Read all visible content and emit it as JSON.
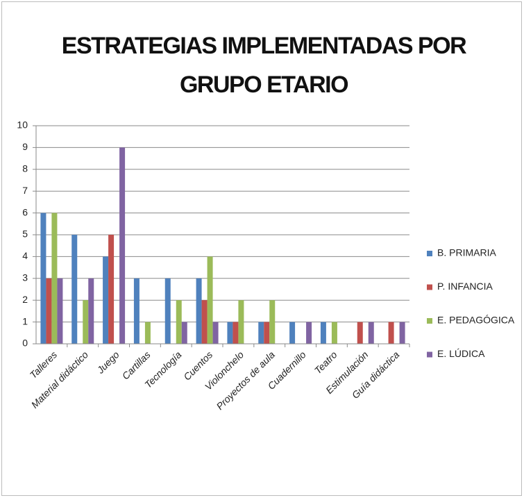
{
  "chart_data": {
    "type": "bar",
    "title": "ESTRATEGIAS IMPLEMENTADAS POR GRUPO ETARIO",
    "categories": [
      "Talleres",
      "Material didáctico",
      "Juego",
      "Cartillas",
      "Tecnología",
      "Cuentos",
      "Violonchelo",
      "Proyectos de aula",
      "Cuadernillo",
      "Teatro",
      "Estimulación",
      "Guía didáctica"
    ],
    "series": [
      {
        "name": "B. PRIMARIA",
        "color": "#4f81bd",
        "values": [
          6,
          5,
          4,
          3,
          3,
          3,
          1,
          1,
          1,
          1,
          0,
          0
        ]
      },
      {
        "name": "P. INFANCIA",
        "color": "#c0504d",
        "values": [
          3,
          0,
          5,
          0,
          0,
          2,
          1,
          1,
          0,
          0,
          1,
          1
        ]
      },
      {
        "name": "E. PEDAGÓGICA",
        "color": "#9bbb59",
        "values": [
          6,
          2,
          0,
          1,
          2,
          4,
          2,
          2,
          0,
          1,
          0,
          0
        ]
      },
      {
        "name": "E. LÚDICA",
        "color": "#8064a2",
        "values": [
          3,
          3,
          9,
          0,
          1,
          1,
          0,
          0,
          1,
          0,
          1,
          1
        ]
      }
    ],
    "ylim": [
      0,
      10
    ],
    "yticks": [
      0,
      1,
      2,
      3,
      4,
      5,
      6,
      7,
      8,
      9,
      10
    ],
    "grid": true,
    "legend": "right"
  }
}
